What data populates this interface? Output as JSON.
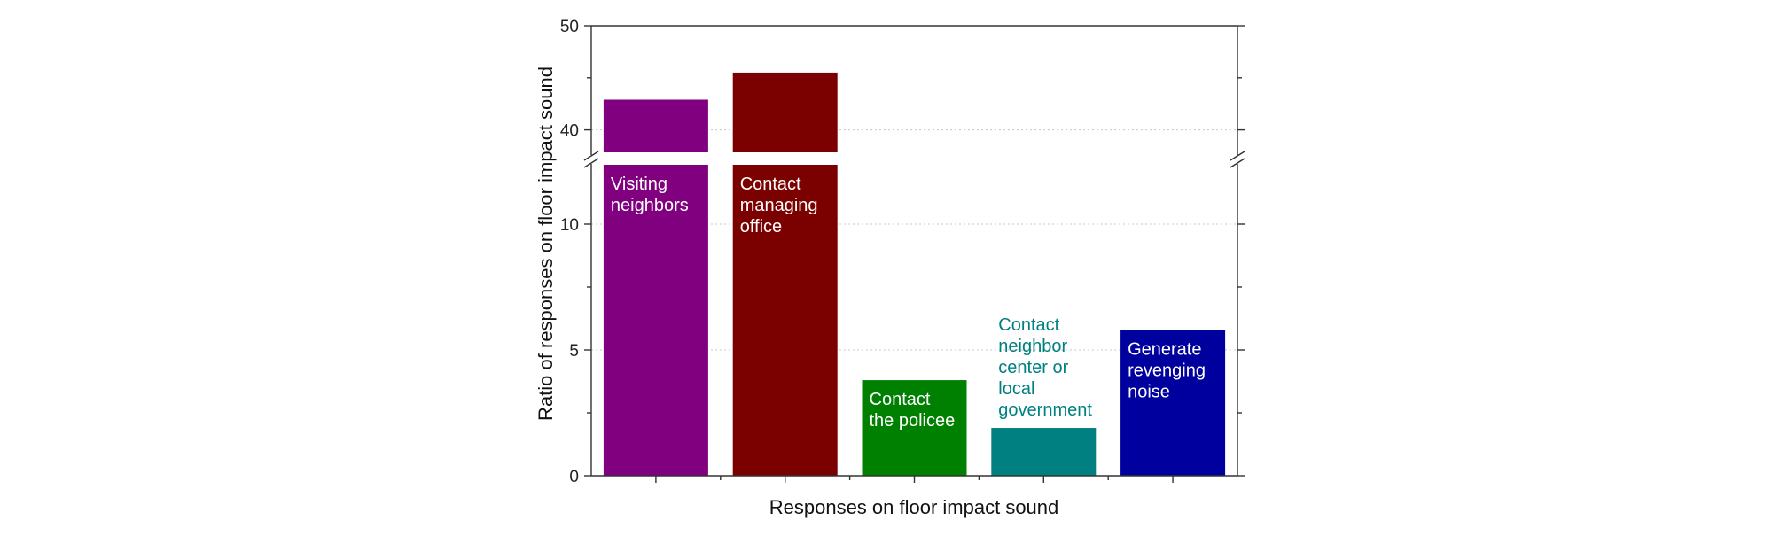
{
  "chart_data": {
    "type": "bar",
    "title": "",
    "xlabel": "Responses on floor impact sound",
    "ylabel": "Ratio of responses on floor impact sound",
    "y_axis_break": true,
    "lower_segment": {
      "range": [
        0,
        12.5
      ],
      "ticks": [
        0,
        5,
        10
      ]
    },
    "upper_segment": {
      "range": [
        37.5,
        50
      ],
      "ticks": [
        40,
        50
      ]
    },
    "ylim": [
      0,
      50
    ],
    "grid": true,
    "legend": "none",
    "categories": [
      "Visiting neighbors",
      "Contact managing office",
      "Contact the policee",
      "Contact neighbor center or local government",
      "Generate revenging noise"
    ],
    "label_lines": [
      [
        "Visiting",
        "neighbors"
      ],
      [
        "Contact",
        "managing",
        "office"
      ],
      [
        "Contact",
        "the policee"
      ],
      [
        "Contact",
        "neighbor",
        "center or",
        "local",
        "government"
      ],
      [
        "Generate",
        "revenging",
        "noise"
      ]
    ],
    "label_position": [
      "inside",
      "inside",
      "inside",
      "above",
      "inside"
    ],
    "values": [
      42.9,
      45.5,
      3.8,
      1.9,
      5.8
    ],
    "colors": [
      "#800080",
      "#7b0000",
      "#008000",
      "#008080",
      "#00009e"
    ],
    "label_colors": [
      "#ffffff",
      "#ffffff",
      "#ffffff",
      "#008080",
      "#ffffff"
    ]
  }
}
